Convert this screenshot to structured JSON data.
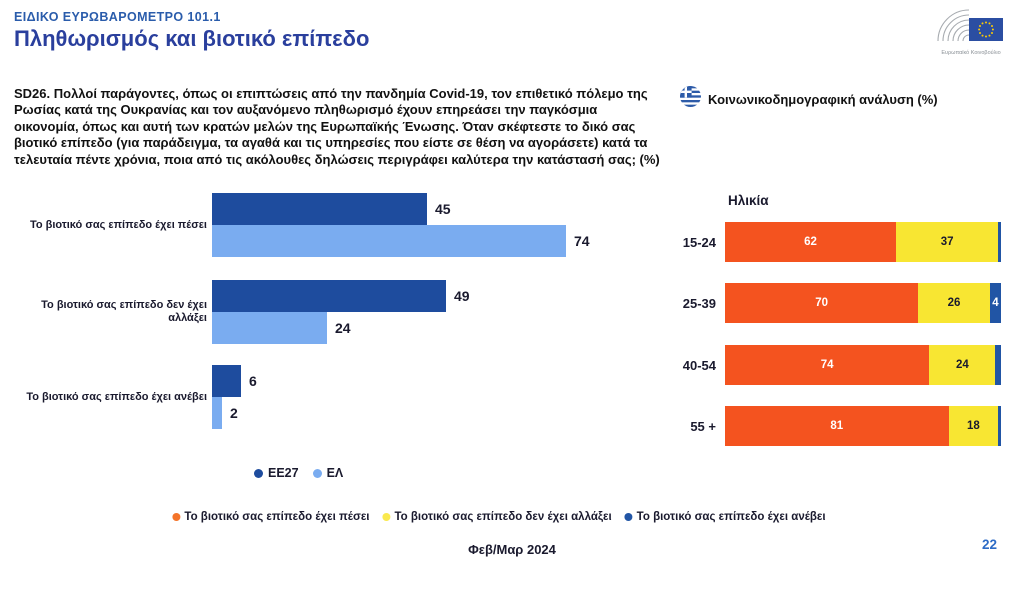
{
  "header": {
    "eyebrow": "ΕΙΔΙΚΟ ΕΥΡΩΒΑΡΟΜΕΤΡΟ 101.1",
    "title": "Πληθωρισμός και βιοτικό επίπεδο",
    "logo_caption": "Ευρωπαϊκό Κοινοβούλιο"
  },
  "question": "SD26. Πολλοί παράγοντες, όπως οι επιπτώσεις από την πανδημία Covid-19, τον επιθετικό πόλεμο της Ρωσίας κατά της Ουκρανίας και τον αυξανόμενο πληθωρισμό έχουν επηρεάσει την παγκόσμια οικονομία, όπως και αυτή των κρατών μελών της Ευρωπαϊκής Ένωσης. Όταν σκέφτεστε το δικό σας βιοτικό επίπεδο (για παράδειγμα, τα αγαθά και τις υπηρεσίες που είστε σε θέση να αγοράσετε) κατά τα τελευταία πέντε χρόνια, ποια από τις ακόλουθες δηλώσεις περιγράφει καλύτερα την κατάστασή σας; (%)",
  "right_header": {
    "flag_icon": "greek-flag-icon",
    "label": "Κοινωνικοδημογραφική ανάλυση (%)"
  },
  "colors": {
    "ee27": "#1E4C9E",
    "el": "#7AACF0",
    "fallen": "#F4531F",
    "unchanged": "#F8E632",
    "risen": "#2155A5",
    "text_dark": "#1A1A2E",
    "title_blue": "#2A3F9D",
    "eyebrow_blue": "#2A5CAB",
    "page_number_blue": "#2D6BC6"
  },
  "chart_data": [
    {
      "type": "bar",
      "orientation": "horizontal",
      "categories": [
        "Το βιοτικό σας επίπεδο έχει πέσει",
        "Το βιοτικό σας επίπεδο δεν έχει αλλάξει",
        "Το βιοτικό σας επίπεδο έχει ανέβει"
      ],
      "series": [
        {
          "name": "ΕΕ27",
          "values": [
            45,
            49,
            6
          ],
          "color_key": "ee27"
        },
        {
          "name": "ΕΛ",
          "values": [
            74,
            24,
            2
          ],
          "color_key": "el"
        }
      ],
      "xlim": [
        0,
        100
      ],
      "value_labels": true,
      "grid": false,
      "legend_position": "bottom-center"
    },
    {
      "type": "bar",
      "stacked": true,
      "orientation": "horizontal",
      "title": "Ηλικία",
      "categories": [
        "15-24",
        "25-39",
        "40-54",
        "55 +"
      ],
      "series": [
        {
          "name": "Το βιοτικό σας επίπεδο έχει πέσει",
          "values": [
            62,
            70,
            74,
            81
          ],
          "color_key": "fallen",
          "label_color": "#FFFFFF"
        },
        {
          "name": "Το βιοτικό σας επίπεδο δεν έχει αλλάξει",
          "values": [
            37,
            26,
            24,
            18
          ],
          "color_key": "unchanged",
          "label_color": "#1A1A2E"
        },
        {
          "name": "Το βιοτικό σας επίπεδο έχει ανέβει",
          "values": [
            1,
            4,
            2,
            1
          ],
          "color_key": "risen",
          "label_color": "#FFFFFF"
        }
      ],
      "xlim": [
        0,
        100
      ],
      "label_min": 4,
      "grid": false,
      "legend_position": "bottom"
    }
  ],
  "footer": {
    "date": "Φεβ/Μαρ 2024",
    "page": "22"
  }
}
